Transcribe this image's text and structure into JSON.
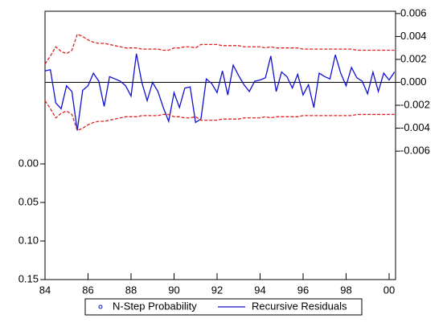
{
  "chart_data": {
    "type": "line",
    "x": [
      1984,
      1984.25,
      1984.5,
      1984.75,
      1985,
      1985.25,
      1985.5,
      1985.75,
      1986,
      1986.25,
      1986.5,
      1986.75,
      1987,
      1987.25,
      1987.5,
      1987.75,
      1988,
      1988.25,
      1988.5,
      1988.75,
      1989,
      1989.25,
      1989.5,
      1989.75,
      1990,
      1990.25,
      1990.5,
      1990.75,
      1991,
      1991.25,
      1991.5,
      1991.75,
      1992,
      1992.25,
      1992.5,
      1992.75,
      1993,
      1993.25,
      1993.5,
      1993.75,
      1994,
      1994.25,
      1994.5,
      1994.75,
      1995,
      1995.25,
      1995.5,
      1995.75,
      1996,
      1996.25,
      1996.5,
      1996.75,
      1997,
      1997.25,
      1997.5,
      1997.75,
      1998,
      1998.25,
      1998.5,
      1998.75,
      1999,
      1999.25,
      1999.5,
      1999.75,
      2000,
      2000.25
    ],
    "xlim": [
      1984,
      2000.3
    ],
    "xticks": [
      {
        "value": 1984,
        "label": "84"
      },
      {
        "value": 1986,
        "label": "86"
      },
      {
        "value": 1988,
        "label": "88"
      },
      {
        "value": 1990,
        "label": "90"
      },
      {
        "value": 1992,
        "label": "92"
      },
      {
        "value": 1994,
        "label": "94"
      },
      {
        "value": 1996,
        "label": "96"
      },
      {
        "value": 1998,
        "label": "98"
      },
      {
        "value": 2000,
        "label": "00"
      }
    ],
    "ylim": [
      0.15,
      -0.198
    ],
    "yticks": [
      {
        "value": 0,
        "label": "0.00"
      },
      {
        "value": 0.05,
        "label": "0.05"
      },
      {
        "value": 0.1,
        "label": "0.10"
      },
      {
        "value": 0.15,
        "label": "0.15"
      }
    ],
    "y2lim": [
      -0.0172,
      0.0062
    ],
    "y2ticks": [
      {
        "value": 0.006,
        "label": "0.006"
      },
      {
        "value": 0.004,
        "label": "0.004"
      },
      {
        "value": 0.002,
        "label": "0.002"
      },
      {
        "value": 0,
        "label": "0.000"
      },
      {
        "value": -0.002,
        "label": "-0.002"
      },
      {
        "value": -0.004,
        "label": "-0.004"
      },
      {
        "value": -0.006,
        "label": "-0.006"
      }
    ],
    "zero_line": true,
    "series": [
      {
        "name": "N-Step Probability",
        "color": "#1010d0",
        "marker": "circle",
        "values": [
          null,
          null,
          null,
          null,
          null,
          null,
          null,
          null,
          null,
          null,
          null,
          null,
          null,
          null,
          null,
          null,
          null,
          null,
          null,
          null,
          null,
          null,
          null,
          null,
          null,
          null,
          null,
          null,
          null,
          null,
          null,
          null,
          null,
          null,
          null,
          null,
          null,
          null,
          null,
          null,
          null,
          null,
          null,
          null,
          null,
          null,
          null,
          null,
          null,
          null,
          null,
          null,
          null,
          null,
          null,
          null,
          null,
          null,
          null,
          null,
          null,
          null,
          null,
          null,
          null,
          null
        ]
      },
      {
        "name": "Recursive Residuals",
        "color": "#1010d0",
        "axis": "y2",
        "values": [
          0.001,
          0.0011,
          -0.0018,
          -0.0023,
          -0.0003,
          -0.0008,
          -0.0042,
          -0.0007,
          -0.0003,
          0.0008,
          0.0001,
          -0.0021,
          0.0005,
          0.0003,
          0.0001,
          -0.0003,
          -0.0012,
          0.0025,
          0,
          -0.0016,
          0,
          -0.0008,
          -0.0022,
          -0.0034,
          -0.0009,
          -0.0022,
          -0.0005,
          -0.0004,
          -0.0035,
          -0.0032,
          0.0003,
          -0.0001,
          -0.0009,
          0.001,
          -0.0011,
          0.0015,
          0.0006,
          -0.0002,
          -0.0008,
          0.0001,
          0.0002,
          0.0004,
          0.0023,
          -0.0008,
          0.0009,
          0.0005,
          -0.0005,
          0.0007,
          -0.0011,
          -0.0002,
          -0.0022,
          0.0008,
          0.0005,
          0.0003,
          0.0024,
          0.0008,
          -0.0003,
          0.0013,
          0.0004,
          0.0001,
          -0.001,
          0.0009,
          -0.0008,
          0.0008,
          0.0002,
          0.0009
        ]
      },
      {
        "color": "#e02020",
        "axis": "y2",
        "dash": true,
        "values": [
          0.0016,
          0.0023,
          0.0031,
          0.0027,
          0.0025,
          0.0028,
          0.0042,
          0.004,
          0.0037,
          0.0035,
          0.0034,
          0.0034,
          0.0033,
          0.0032,
          0.0031,
          0.003,
          0.003,
          0.003,
          0.0029,
          0.0029,
          0.0029,
          0.0029,
          0.0028,
          0.0028,
          0.003,
          0.003,
          0.0031,
          0.0031,
          0.003,
          0.0033,
          0.0033,
          0.0033,
          0.0033,
          0.0032,
          0.0032,
          0.0032,
          0.0032,
          0.0031,
          0.0031,
          0.0031,
          0.0031,
          0.003,
          0.0031,
          0.003,
          0.003,
          0.003,
          0.003,
          0.003,
          0.0029,
          0.0029,
          0.0029,
          0.0029,
          0.0029,
          0.0029,
          0.0029,
          0.0029,
          0.0029,
          0.0029,
          0.0028,
          0.0028,
          0.0028,
          0.0028,
          0.0028,
          0.0028,
          0.0028,
          0.0028
        ]
      },
      {
        "color": "#e02020",
        "axis": "y2",
        "dash": true,
        "values": [
          -0.0016,
          -0.0023,
          -0.0031,
          -0.0027,
          -0.0025,
          -0.0028,
          -0.0042,
          -0.004,
          -0.0037,
          -0.0035,
          -0.0034,
          -0.0034,
          -0.0033,
          -0.0032,
          -0.0031,
          -0.003,
          -0.003,
          -0.003,
          -0.0029,
          -0.0029,
          -0.0029,
          -0.0029,
          -0.0028,
          -0.0028,
          -0.003,
          -0.003,
          -0.0031,
          -0.0031,
          -0.003,
          -0.0033,
          -0.0033,
          -0.0033,
          -0.0033,
          -0.0032,
          -0.0032,
          -0.0032,
          -0.0032,
          -0.0031,
          -0.0031,
          -0.0031,
          -0.0031,
          -0.003,
          -0.0031,
          -0.003,
          -0.003,
          -0.003,
          -0.003,
          -0.003,
          -0.0029,
          -0.0029,
          -0.0029,
          -0.0029,
          -0.0029,
          -0.0029,
          -0.0029,
          -0.0029,
          -0.0029,
          -0.0029,
          -0.0028,
          -0.0028,
          -0.0028,
          -0.0028,
          -0.0028,
          -0.0028,
          -0.0028,
          -0.0028
        ]
      }
    ]
  }
}
